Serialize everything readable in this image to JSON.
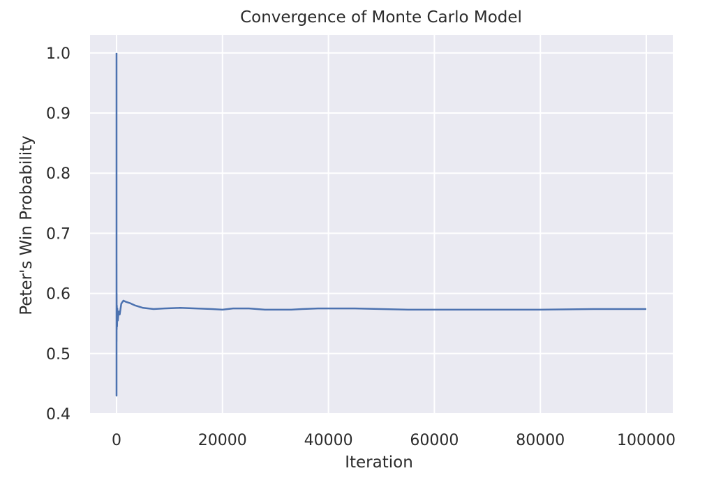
{
  "chart_data": {
    "type": "line",
    "title": "Convergence of Monte Carlo Model",
    "xlabel": "Iteration",
    "ylabel": "Peter's Win Probability",
    "xlim": [
      -5000,
      105000
    ],
    "ylim": [
      0.4,
      1.03
    ],
    "xticks": [
      0,
      20000,
      40000,
      60000,
      80000,
      100000
    ],
    "xtick_labels": [
      "0",
      "20000",
      "40000",
      "60000",
      "80000",
      "100000"
    ],
    "yticks": [
      0.4,
      0.5,
      0.6,
      0.7,
      0.8,
      0.9,
      1.0
    ],
    "ytick_labels": [
      "0.4",
      "0.5",
      "0.6",
      "0.7",
      "0.8",
      "0.9",
      "1.0"
    ],
    "grid": true,
    "background": "#eaeaf2",
    "grid_color": "#ffffff",
    "line_color": "#4c72b0",
    "series": [
      {
        "x": [
          1,
          3,
          6,
          12,
          20,
          35,
          60,
          100,
          150,
          250,
          400,
          600,
          900,
          1300,
          1800,
          2500,
          3500,
          5000,
          7000,
          9000,
          12000,
          15000,
          18000,
          20000,
          22000,
          25000,
          28000,
          30000,
          33000,
          35000,
          38000,
          40000,
          45000,
          50000,
          55000,
          60000,
          70000,
          80000,
          90000,
          100000
        ],
        "y": [
          1.0,
          0.43,
          0.65,
          0.52,
          0.6,
          0.54,
          0.58,
          0.545,
          0.575,
          0.555,
          0.57,
          0.565,
          0.583,
          0.588,
          0.586,
          0.584,
          0.58,
          0.576,
          0.574,
          0.575,
          0.576,
          0.575,
          0.574,
          0.573,
          0.575,
          0.575,
          0.573,
          0.573,
          0.573,
          0.574,
          0.575,
          0.575,
          0.575,
          0.574,
          0.573,
          0.573,
          0.573,
          0.573,
          0.574,
          0.574
        ]
      }
    ]
  }
}
